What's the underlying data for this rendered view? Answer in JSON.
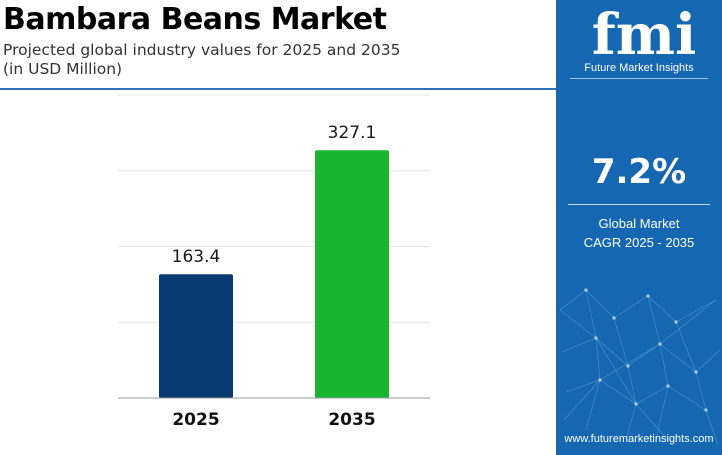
{
  "header": {
    "title": "Bambara Beans Market",
    "subtitle_line1": "Projected global industry values for 2025 and 2035",
    "subtitle_line2": "(in USD Million)"
  },
  "chart_data": {
    "type": "bar",
    "categories": [
      "2025",
      "2035"
    ],
    "values": [
      163.4,
      327.1
    ],
    "value_labels": [
      "163.4",
      "327.1"
    ],
    "bar_colors": [
      "#0a3a72",
      "#19b430"
    ],
    "ylim": [
      0,
      400
    ],
    "grid": true,
    "legend": "none"
  },
  "sidebar": {
    "logo_text": "fmi",
    "logo_subtitle": "Future Market Insights",
    "cagr_value": "7.2%",
    "cagr_label_line1": "Global Market",
    "cagr_label_line2": "CAGR 2025 - 2035",
    "website": "www.futuremarketinsights.com",
    "accent_color": "#1467b0"
  }
}
